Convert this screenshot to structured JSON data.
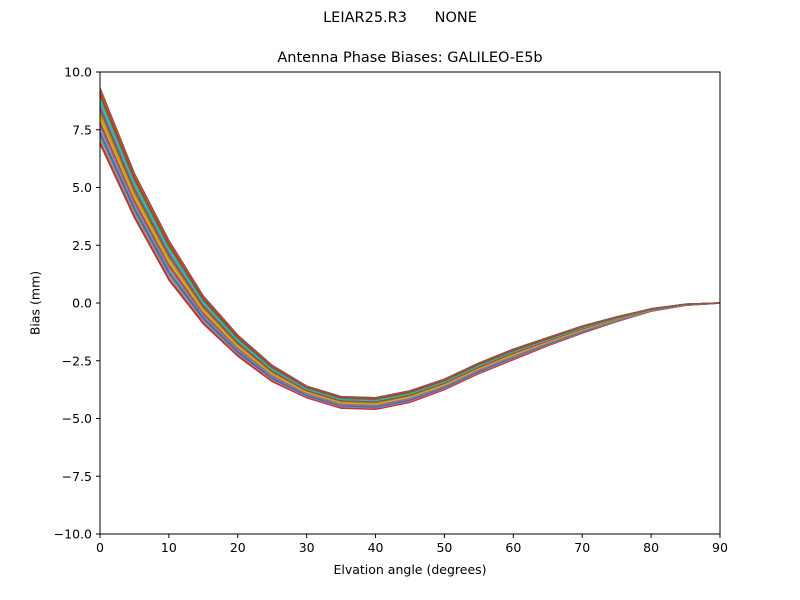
{
  "figure": {
    "suptitle": "LEIAR25.R3      NONE",
    "title": "Antenna Phase Biases: GALILEO-E5b",
    "xlabel": "Elvation angle (degrees)",
    "ylabel": "Bias (mm)"
  },
  "chart_data": {
    "type": "line",
    "title": "Antenna Phase Biases: GALILEO-E5b",
    "suptitle": "LEIAR25.R3      NONE",
    "xlabel": "Elvation angle (degrees)",
    "ylabel": "Bias (mm)",
    "xlim": [
      0,
      90
    ],
    "ylim": [
      -10,
      10
    ],
    "xticks": [
      0,
      10,
      20,
      30,
      40,
      50,
      60,
      70,
      80,
      90
    ],
    "yticks": [
      10.0,
      7.5,
      5.0,
      2.5,
      0.0,
      -2.5,
      -5.0,
      -7.5,
      -10.0
    ],
    "ytick_labels": [
      "10.0",
      "7.5",
      "5.0",
      "2.5",
      "0.0",
      "−2.5",
      "−5.0",
      "−7.5",
      "−10.0"
    ],
    "grid": false,
    "legend": null,
    "x": [
      0,
      5,
      10,
      15,
      20,
      25,
      30,
      35,
      40,
      45,
      50,
      55,
      60,
      65,
      70,
      75,
      80,
      85,
      90
    ],
    "envelope_top": [
      9.3,
      5.6,
      2.7,
      0.3,
      -1.4,
      -2.7,
      -3.6,
      -4.05,
      -4.1,
      -3.8,
      -3.3,
      -2.6,
      -2.0,
      -1.5,
      -1.0,
      -0.6,
      -0.25,
      -0.05,
      0.0
    ],
    "envelope_bottom": [
      6.9,
      3.7,
      1.0,
      -0.9,
      -2.3,
      -3.4,
      -4.1,
      -4.55,
      -4.6,
      -4.3,
      -3.75,
      -3.05,
      -2.45,
      -1.85,
      -1.3,
      -0.8,
      -0.35,
      -0.1,
      0.0
    ],
    "series_count": 36,
    "palette": [
      "#1f77b4",
      "#ff7f0e",
      "#2ca02c",
      "#d62728",
      "#9467bd",
      "#8c564b",
      "#e377c2",
      "#7f7f7f",
      "#bcbd22",
      "#17becf"
    ],
    "note": "Many overlapping azimuth curves (one per azimuth) forming a band between envelope_bottom and envelope_top"
  }
}
